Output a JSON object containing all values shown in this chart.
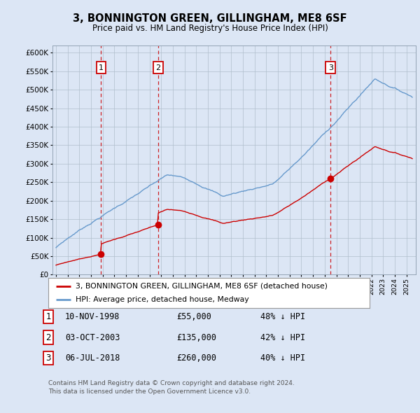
{
  "title": "3, BONNINGTON GREEN, GILLINGHAM, ME8 6SF",
  "subtitle": "Price paid vs. HM Land Registry's House Price Index (HPI)",
  "sale_years": [
    1998.861,
    2003.753,
    2018.506
  ],
  "sale_prices": [
    55000,
    135000,
    260000
  ],
  "sale_labels": [
    "1",
    "2",
    "3"
  ],
  "legend_red": "3, BONNINGTON GREEN, GILLINGHAM, ME8 6SF (detached house)",
  "legend_blue": "HPI: Average price, detached house, Medway",
  "table_entries": [
    {
      "label": "1",
      "date": "10-NOV-1998",
      "price": "£55,000",
      "hpi": "48% ↓ HPI"
    },
    {
      "label": "2",
      "date": "03-OCT-2003",
      "price": "£135,000",
      "hpi": "42% ↓ HPI"
    },
    {
      "label": "3",
      "date": "06-JUL-2018",
      "price": "£260,000",
      "hpi": "40% ↓ HPI"
    }
  ],
  "footnote1": "Contains HM Land Registry data © Crown copyright and database right 2024.",
  "footnote2": "This data is licensed under the Open Government Licence v3.0.",
  "ylim": [
    0,
    620000
  ],
  "yticks": [
    0,
    50000,
    100000,
    150000,
    200000,
    250000,
    300000,
    350000,
    400000,
    450000,
    500000,
    550000,
    600000
  ],
  "xlim_left": 1994.7,
  "xlim_right": 2025.8,
  "background_color": "#dce6f5",
  "plot_bg": "#dce6f5",
  "red_color": "#cc0000",
  "blue_color": "#6699cc",
  "grid_color": "#aabbcc"
}
